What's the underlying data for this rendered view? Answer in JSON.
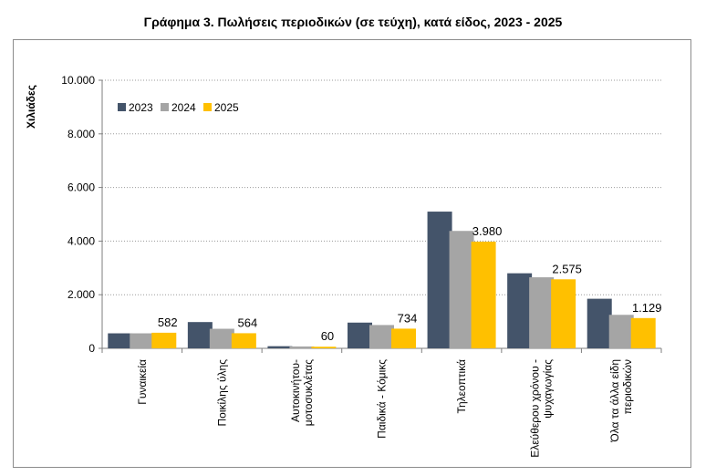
{
  "chart_data": {
    "type": "bar",
    "title": "Γράφημα 3. Πωλήσεις περιοδικών (σε τεύχη), κατά είδος, 2023 - 2025",
    "ylabel": "Χιλιάδες",
    "xlabel": "",
    "ylim": [
      0,
      10000
    ],
    "yticks": [
      0,
      2000,
      4000,
      6000,
      8000,
      10000
    ],
    "ytick_labels": [
      "0",
      "2.000",
      "4.000",
      "6.000",
      "8.000",
      "10.000"
    ],
    "grid": "horizontal-dotted",
    "legend_position": "top-left",
    "categories": [
      [
        "Γυναικεία"
      ],
      [
        "Ποικίλης ύλης"
      ],
      [
        "Αυτοκινήτου-",
        "μοτοσυκλέτας"
      ],
      [
        "Παιδικά - Κόμικς"
      ],
      [
        "Τηλεοπτικά"
      ],
      [
        "Ελεύθερου χρόνου -",
        "ψυχαγωγίας"
      ],
      [
        "Όλα τα άλλα είδη",
        "περιοδικών"
      ]
    ],
    "series": [
      {
        "name": "2023",
        "color": "#44546a",
        "values": [
          560,
          980,
          80,
          960,
          5100,
          2800,
          1850
        ]
      },
      {
        "name": "2024",
        "color": "#a5a5a5",
        "values": [
          560,
          730,
          70,
          870,
          4380,
          2650,
          1250
        ]
      },
      {
        "name": "2025",
        "color": "#ffc000",
        "values": [
          582,
          564,
          60,
          734,
          3980,
          2575,
          1129
        ]
      }
    ],
    "data_labels": [
      "582",
      "564",
      "60",
      "734",
      "3.980",
      "2.575",
      "1.129"
    ]
  }
}
